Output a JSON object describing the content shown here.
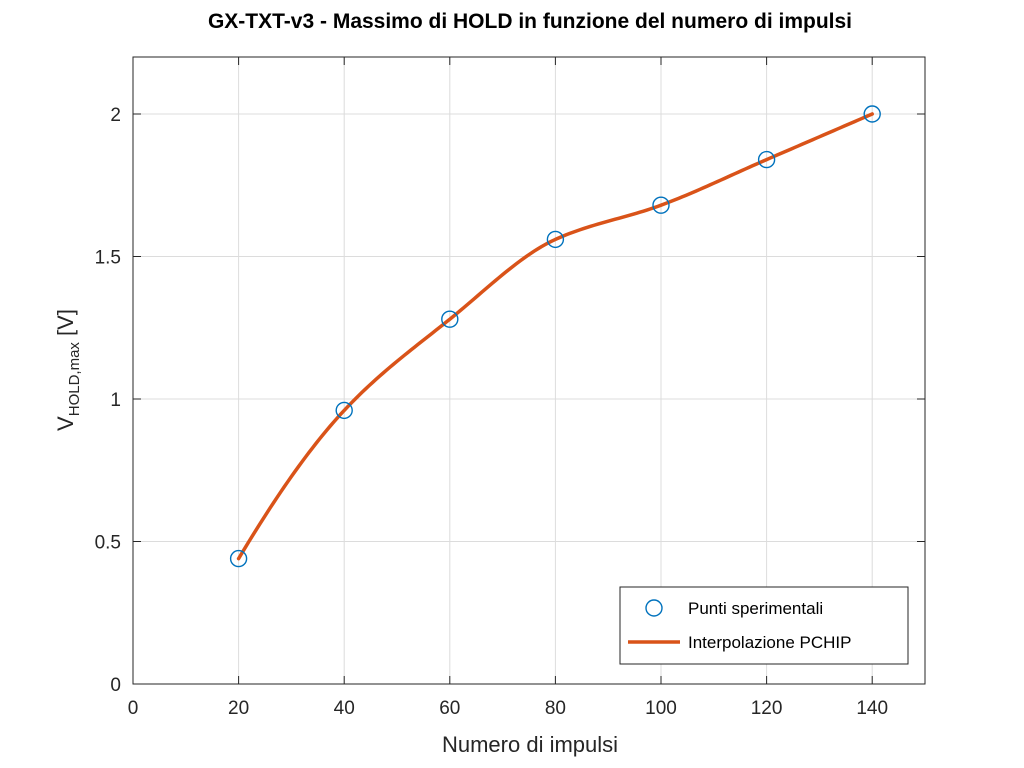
{
  "chart_data": {
    "type": "line",
    "title": "GX-TXT-v3 - Massimo di HOLD in funzione del numero di impulsi",
    "xlabel": "Numero di impulsi",
    "ylabel": {
      "main": "V",
      "subscript": "HOLD,max",
      "suffix": " [V]"
    },
    "xlim": [
      0,
      150
    ],
    "ylim": [
      0,
      2.2
    ],
    "xticks": [
      0,
      20,
      40,
      60,
      80,
      100,
      120,
      140
    ],
    "yticks": [
      0,
      0.5,
      1,
      1.5,
      2
    ],
    "xtick_labels": [
      "0",
      "20",
      "40",
      "60",
      "80",
      "100",
      "120",
      "140"
    ],
    "ytick_labels": [
      "0",
      "0.5",
      "1",
      "1.5",
      "2"
    ],
    "grid": true,
    "legend_position": "bottom-right",
    "series": [
      {
        "name": "Punti sperimentali",
        "style": "markers",
        "marker": "circle",
        "color": "#0072BD",
        "x": [
          20,
          40,
          60,
          80,
          100,
          120,
          140
        ],
        "y": [
          0.44,
          0.96,
          1.28,
          1.56,
          1.68,
          1.84,
          2.0
        ]
      },
      {
        "name": "Interpolazione PCHIP",
        "style": "line",
        "color": "#D95319",
        "x": [
          20,
          40,
          60,
          80,
          100,
          120,
          140
        ],
        "y": [
          0.44,
          0.96,
          1.28,
          1.56,
          1.68,
          1.84,
          2.0
        ]
      }
    ]
  }
}
